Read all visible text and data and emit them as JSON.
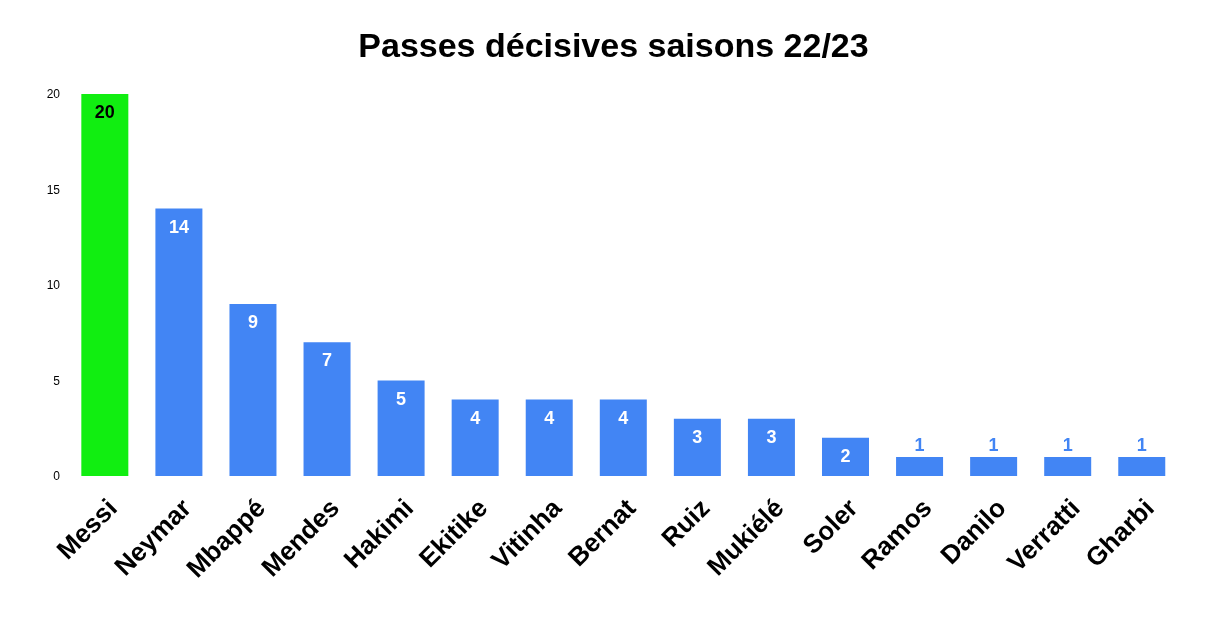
{
  "chart_data": {
    "type": "bar",
    "title": "Passes décisives saisons 22/23",
    "categories": [
      "Messi",
      "Neymar",
      "Mbappé",
      "Mendes",
      "Hakimi",
      "Ekitike",
      "Vitinha",
      "Bernat",
      "Ruiz",
      "Mukiélé",
      "Soler",
      "Ramos",
      "Danilo",
      "Verratti",
      "Gharbi"
    ],
    "values": [
      20,
      14,
      9,
      7,
      5,
      4,
      4,
      4,
      3,
      3,
      2,
      1,
      1,
      1,
      1
    ],
    "colors": [
      "#11ee11",
      "#4285f4",
      "#4285f4",
      "#4285f4",
      "#4285f4",
      "#4285f4",
      "#4285f4",
      "#4285f4",
      "#4285f4",
      "#4285f4",
      "#4285f4",
      "#4285f4",
      "#4285f4",
      "#4285f4",
      "#4285f4"
    ],
    "ylim": [
      0,
      20
    ],
    "yticks": [
      0,
      5,
      10,
      15,
      20
    ],
    "grid": false,
    "data_labels": true
  }
}
